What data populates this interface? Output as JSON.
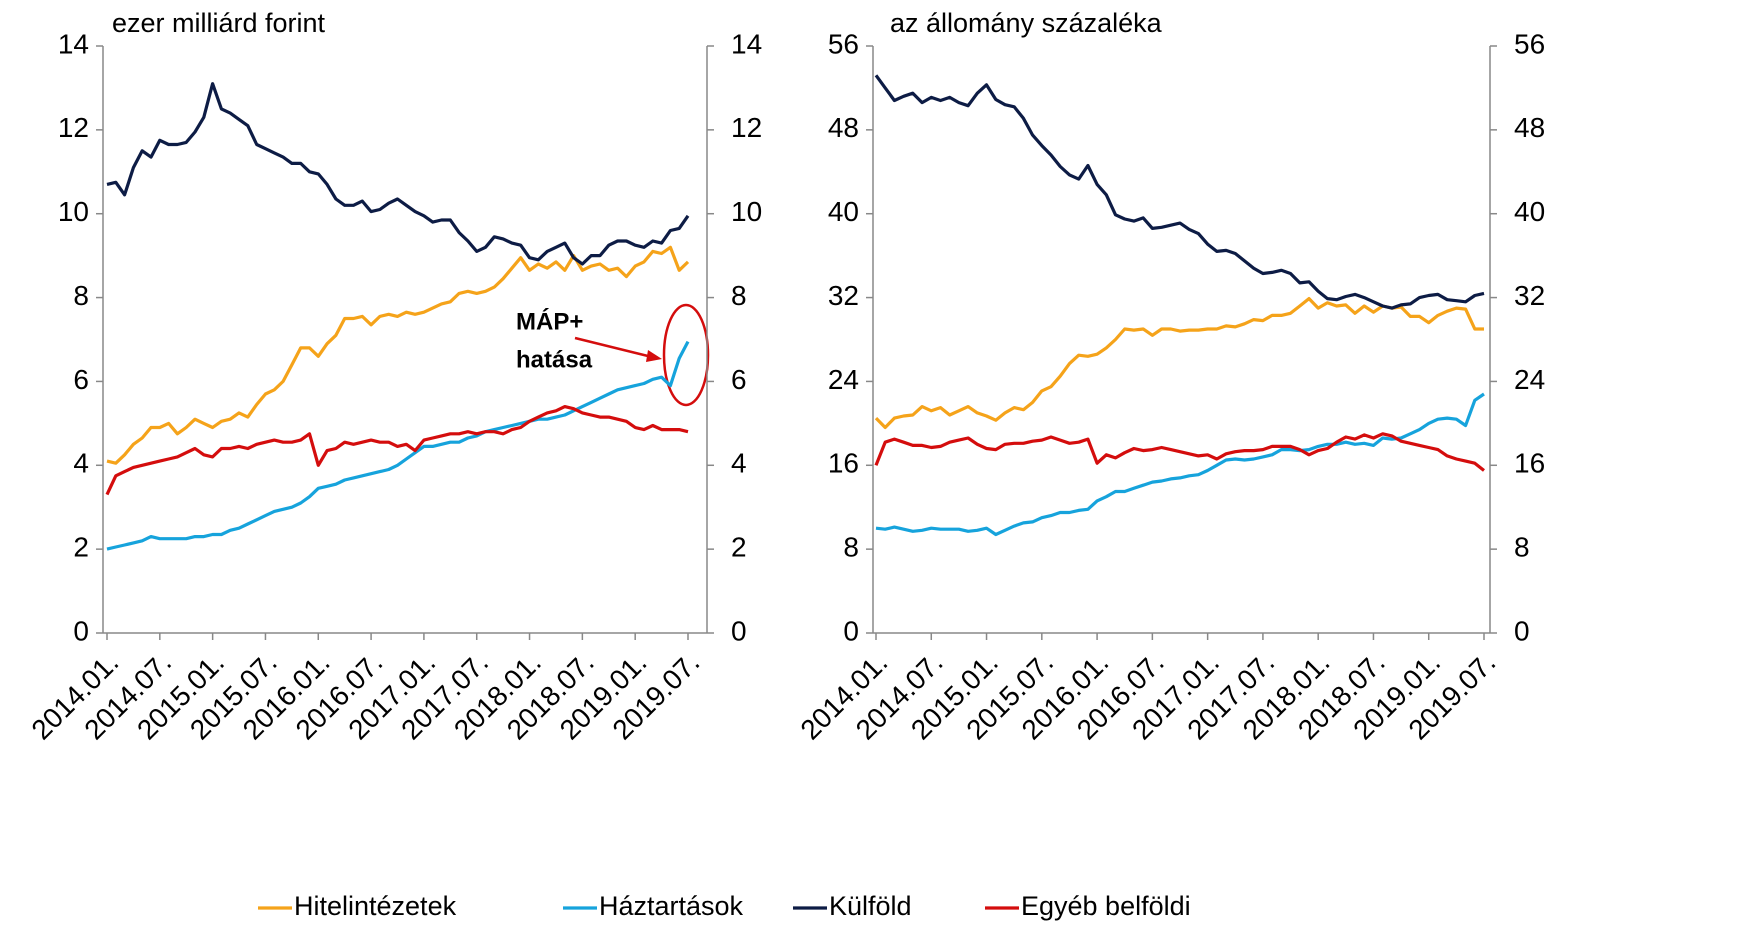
{
  "chart_data": [
    {
      "type": "line",
      "title": "ezer milliárd forint",
      "annotation": [
        "MÁP+",
        "hatása"
      ],
      "categories": [
        "2014.01.",
        null,
        null,
        null,
        null,
        null,
        "2014.07.",
        null,
        null,
        null,
        null,
        null,
        "2015.01.",
        null,
        null,
        null,
        null,
        null,
        "2015.07.",
        null,
        null,
        null,
        null,
        null,
        "2016.01.",
        null,
        null,
        null,
        null,
        null,
        "2016.07.",
        null,
        null,
        null,
        null,
        null,
        "2017.01.",
        null,
        null,
        null,
        null,
        null,
        "2017.07.",
        null,
        null,
        null,
        null,
        null,
        "2018.01.",
        null,
        null,
        null,
        null,
        null,
        "2018.07.",
        null,
        null,
        null,
        null,
        null,
        "2019.01.",
        null,
        null,
        null,
        null,
        null,
        "2019.07."
      ],
      "ylim": [
        0,
        14
      ],
      "yticks": [
        0,
        2,
        4,
        6,
        8,
        10,
        12,
        14
      ],
      "y2lim": [
        0,
        14
      ],
      "y2ticks": [
        0,
        2,
        4,
        6,
        8,
        10,
        12,
        14
      ],
      "series": [
        {
          "name": "Hitelintézetek",
          "color": "#f5a31a",
          "values": [
            4.1,
            4.05,
            4.25,
            4.5,
            4.65,
            4.9,
            4.9,
            5.0,
            4.75,
            4.9,
            5.1,
            5.0,
            4.9,
            5.05,
            5.1,
            5.25,
            5.15,
            5.45,
            5.7,
            5.8,
            6.0,
            6.4,
            6.8,
            6.8,
            6.6,
            6.9,
            7.1,
            7.5,
            7.5,
            7.55,
            7.35,
            7.55,
            7.6,
            7.55,
            7.65,
            7.6,
            7.65,
            7.75,
            7.85,
            7.9,
            8.1,
            8.15,
            8.1,
            8.15,
            8.25,
            8.45,
            8.7,
            8.95,
            8.65,
            8.8,
            8.7,
            8.85,
            8.65,
            9.0,
            8.65,
            8.75,
            8.8,
            8.65,
            8.7,
            8.5,
            8.75,
            8.85,
            9.1,
            9.05,
            9.2,
            8.65,
            8.85
          ]
        },
        {
          "name": "Háztartások",
          "color": "#16a3dc",
          "values": [
            2.0,
            2.05,
            2.1,
            2.15,
            2.2,
            2.3,
            2.25,
            2.25,
            2.25,
            2.25,
            2.3,
            2.3,
            2.35,
            2.35,
            2.45,
            2.5,
            2.6,
            2.7,
            2.8,
            2.9,
            2.95,
            3.0,
            3.1,
            3.25,
            3.45,
            3.5,
            3.55,
            3.65,
            3.7,
            3.75,
            3.8,
            3.85,
            3.9,
            4.0,
            4.15,
            4.3,
            4.45,
            4.45,
            4.5,
            4.55,
            4.55,
            4.65,
            4.7,
            4.8,
            4.85,
            4.9,
            4.95,
            5.0,
            5.05,
            5.1,
            5.1,
            5.15,
            5.2,
            5.3,
            5.4,
            5.5,
            5.6,
            5.7,
            5.8,
            5.85,
            5.9,
            5.95,
            6.05,
            6.1,
            5.9,
            6.55,
            6.95
          ]
        },
        {
          "name": "Külföld",
          "color": "#0d1c45",
          "values": [
            10.7,
            10.75,
            10.45,
            11.1,
            11.5,
            11.35,
            11.75,
            11.65,
            11.65,
            11.7,
            11.95,
            12.3,
            13.1,
            12.5,
            12.4,
            12.25,
            12.1,
            11.65,
            11.55,
            11.45,
            11.35,
            11.2,
            11.2,
            11.0,
            10.95,
            10.7,
            10.35,
            10.2,
            10.2,
            10.3,
            10.05,
            10.1,
            10.25,
            10.35,
            10.2,
            10.05,
            9.95,
            9.8,
            9.85,
            9.85,
            9.55,
            9.35,
            9.1,
            9.2,
            9.45,
            9.4,
            9.3,
            9.25,
            8.95,
            8.9,
            9.1,
            9.2,
            9.3,
            8.95,
            8.8,
            9.0,
            9.0,
            9.25,
            9.35,
            9.35,
            9.25,
            9.2,
            9.35,
            9.3,
            9.6,
            9.65,
            9.95
          ]
        },
        {
          "name": "Egyéb belföldi",
          "color": "#d40d0d",
          "values": [
            3.3,
            3.75,
            3.85,
            3.95,
            4.0,
            4.05,
            4.1,
            4.15,
            4.2,
            4.3,
            4.4,
            4.25,
            4.2,
            4.4,
            4.4,
            4.45,
            4.4,
            4.5,
            4.55,
            4.6,
            4.55,
            4.55,
            4.6,
            4.75,
            4.0,
            4.35,
            4.4,
            4.55,
            4.5,
            4.55,
            4.6,
            4.55,
            4.55,
            4.45,
            4.5,
            4.35,
            4.6,
            4.65,
            4.7,
            4.75,
            4.75,
            4.8,
            4.75,
            4.8,
            4.8,
            4.75,
            4.85,
            4.9,
            5.05,
            5.15,
            5.25,
            5.3,
            5.4,
            5.35,
            5.25,
            5.2,
            5.15,
            5.15,
            5.1,
            5.05,
            4.9,
            4.85,
            4.95,
            4.85,
            4.85,
            4.85,
            4.8
          ]
        }
      ]
    },
    {
      "type": "line",
      "title": "az állomány százaléka",
      "categories": [
        "2014.01.",
        null,
        null,
        null,
        null,
        null,
        "2014.07.",
        null,
        null,
        null,
        null,
        null,
        "2015.01.",
        null,
        null,
        null,
        null,
        null,
        "2015.07.",
        null,
        null,
        null,
        null,
        null,
        "2016.01.",
        null,
        null,
        null,
        null,
        null,
        "2016.07.",
        null,
        null,
        null,
        null,
        null,
        "2017.01.",
        null,
        null,
        null,
        null,
        null,
        "2017.07.",
        null,
        null,
        null,
        null,
        null,
        "2018.01.",
        null,
        null,
        null,
        null,
        null,
        "2018.07.",
        null,
        null,
        null,
        null,
        null,
        "2019.01.",
        null,
        null,
        null,
        null,
        null,
        "2019.07."
      ],
      "ylim": [
        0,
        56
      ],
      "yticks": [
        0,
        8,
        16,
        24,
        32,
        40,
        48,
        56
      ],
      "y2lim": [
        0,
        56
      ],
      "y2ticks": [
        0,
        8,
        16,
        24,
        32,
        40,
        48,
        56
      ],
      "series": [
        {
          "name": "Hitelintézetek",
          "color": "#f5a31a",
          "values": [
            20.5,
            19.6,
            20.5,
            20.7,
            20.8,
            21.6,
            21.2,
            21.5,
            20.8,
            21.2,
            21.6,
            21.0,
            20.7,
            20.3,
            21.0,
            21.5,
            21.3,
            22.0,
            23.1,
            23.5,
            24.5,
            25.7,
            26.5,
            26.4,
            26.6,
            27.2,
            28.0,
            29.0,
            28.9,
            29.0,
            28.4,
            29.0,
            29.0,
            28.8,
            28.9,
            28.9,
            29.0,
            29.0,
            29.3,
            29.2,
            29.5,
            29.9,
            29.8,
            30.3,
            30.3,
            30.5,
            31.2,
            31.9,
            31.0,
            31.5,
            31.2,
            31.3,
            30.5,
            31.2,
            30.6,
            31.2,
            31.0,
            31.1,
            30.2,
            30.2,
            29.6,
            30.3,
            30.7,
            31.0,
            30.9,
            29.0,
            29.0
          ]
        },
        {
          "name": "Háztartások",
          "color": "#16a3dc",
          "values": [
            10.0,
            9.9,
            10.1,
            9.9,
            9.7,
            9.8,
            10.0,
            9.9,
            9.9,
            9.9,
            9.7,
            9.8,
            10.0,
            9.4,
            9.8,
            10.2,
            10.5,
            10.6,
            11.0,
            11.2,
            11.5,
            11.5,
            11.7,
            11.8,
            12.6,
            13.0,
            13.5,
            13.5,
            13.8,
            14.1,
            14.4,
            14.5,
            14.7,
            14.8,
            15.0,
            15.1,
            15.5,
            16.0,
            16.5,
            16.6,
            16.5,
            16.6,
            16.8,
            17.0,
            17.5,
            17.5,
            17.4,
            17.5,
            17.8,
            18.0,
            18.0,
            18.2,
            18.0,
            18.1,
            17.9,
            18.6,
            18.5,
            18.6,
            19.0,
            19.4,
            20.0,
            20.4,
            20.5,
            20.4,
            19.8,
            22.2,
            22.8
          ]
        },
        {
          "name": "Külföld",
          "color": "#0d1c45",
          "values": [
            53.2,
            52.0,
            50.8,
            51.2,
            51.5,
            50.6,
            51.1,
            50.8,
            51.1,
            50.6,
            50.3,
            51.5,
            52.3,
            50.9,
            50.4,
            50.2,
            49.1,
            47.5,
            46.5,
            45.6,
            44.5,
            43.7,
            43.3,
            44.6,
            42.8,
            41.8,
            39.9,
            39.5,
            39.3,
            39.6,
            38.6,
            38.7,
            38.9,
            39.1,
            38.5,
            38.1,
            37.1,
            36.4,
            36.5,
            36.2,
            35.5,
            34.8,
            34.3,
            34.4,
            34.6,
            34.3,
            33.4,
            33.5,
            32.6,
            31.9,
            31.8,
            32.1,
            32.3,
            32.0,
            31.6,
            31.2,
            31.0,
            31.3,
            31.4,
            32.0,
            32.2,
            32.3,
            31.8,
            31.7,
            31.6,
            32.2,
            32.4
          ]
        },
        {
          "name": "Egyéb belföldi",
          "color": "#d40d0d",
          "values": [
            16.0,
            18.2,
            18.5,
            18.2,
            17.9,
            17.9,
            17.7,
            17.8,
            18.2,
            18.4,
            18.6,
            18.0,
            17.6,
            17.5,
            18.0,
            18.1,
            18.1,
            18.3,
            18.4,
            18.7,
            18.4,
            18.1,
            18.2,
            18.5,
            16.2,
            17.0,
            16.7,
            17.2,
            17.6,
            17.4,
            17.5,
            17.7,
            17.5,
            17.3,
            17.1,
            16.9,
            17.0,
            16.6,
            17.1,
            17.3,
            17.4,
            17.4,
            17.5,
            17.8,
            17.8,
            17.8,
            17.5,
            17.0,
            17.4,
            17.6,
            18.2,
            18.7,
            18.5,
            18.9,
            18.6,
            19.0,
            18.8,
            18.3,
            18.1,
            17.9,
            17.7,
            17.5,
            16.9,
            16.6,
            16.4,
            16.2,
            15.5
          ]
        }
      ]
    }
  ]
}
